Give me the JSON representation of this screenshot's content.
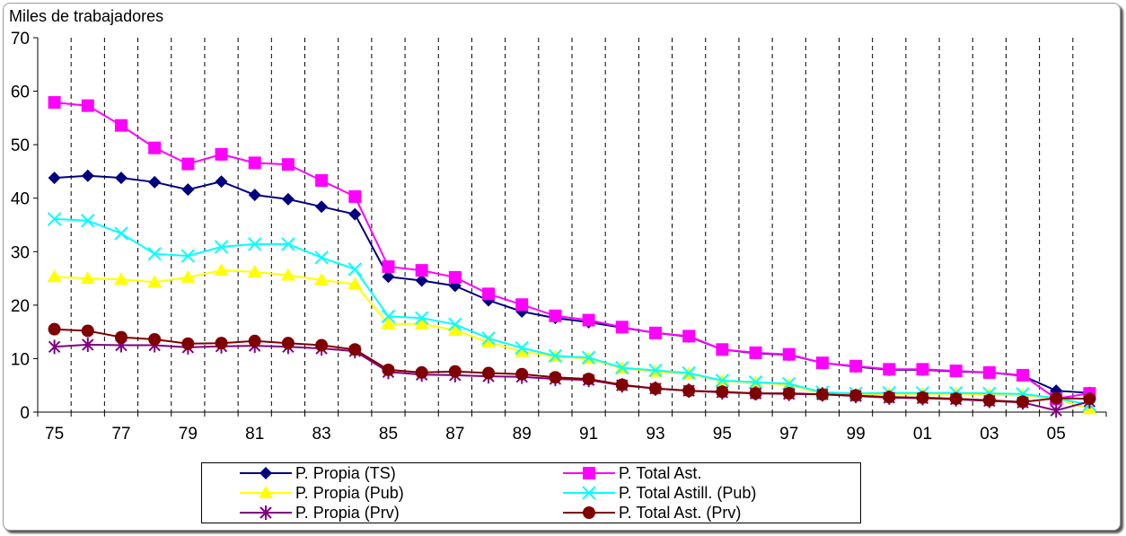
{
  "chart_data": {
    "type": "line",
    "ylabel": "Miles de trabajadores",
    "ylim": [
      0,
      70
    ],
    "yticks": [
      0,
      10,
      20,
      30,
      40,
      50,
      60,
      70
    ],
    "x": [
      75,
      76,
      77,
      78,
      79,
      80,
      81,
      82,
      83,
      84,
      85,
      86,
      87,
      88,
      89,
      90,
      91,
      92,
      93,
      94,
      95,
      96,
      97,
      98,
      99,
      0,
      1,
      2,
      3,
      4,
      5,
      6
    ],
    "xtick_labels": [
      "75",
      "77",
      "79",
      "81",
      "83",
      "85",
      "87",
      "89",
      "91",
      "93",
      "95",
      "97",
      "99",
      "01",
      "03",
      "05"
    ],
    "grid": "vertical dashed lines",
    "legend_position": "bottom",
    "series": [
      {
        "name": "P. Propia (TS)",
        "color": "#000080",
        "marker": "diamond",
        "values": [
          43.8,
          44.2,
          43.8,
          43.0,
          41.6,
          43.1,
          40.6,
          39.8,
          38.4,
          37.0,
          25.3,
          24.6,
          23.6,
          20.9,
          18.8,
          17.6,
          16.8,
          15.8,
          14.8,
          14.1,
          11.7,
          11.0,
          10.7,
          9.2,
          8.5,
          7.9,
          7.9,
          7.6,
          7.4,
          6.8,
          4.0,
          3.6
        ]
      },
      {
        "name": "P. Total Ast.",
        "color": "#FF00FF",
        "marker": "square",
        "values": [
          57.9,
          57.3,
          53.6,
          49.4,
          46.4,
          48.2,
          46.6,
          46.3,
          43.3,
          40.3,
          27.2,
          26.5,
          25.2,
          22.1,
          20.1,
          18.0,
          17.2,
          15.9,
          14.8,
          14.2,
          11.7,
          11.1,
          10.8,
          9.2,
          8.6,
          8.0,
          8.0,
          7.7,
          7.4,
          6.9,
          2.5,
          3.5
        ]
      },
      {
        "name": "P. Propia (Pub)",
        "color": "#FFFF00",
        "marker": "triangle",
        "values": [
          25.3,
          25.0,
          24.8,
          24.3,
          25.2,
          26.5,
          26.2,
          25.6,
          24.7,
          23.9,
          16.5,
          16.5,
          15.3,
          13.1,
          11.3,
          10.4,
          10.0,
          8.2,
          7.6,
          7.2,
          5.8,
          5.5,
          5.1,
          3.5,
          3.3,
          3.4,
          3.4,
          3.4,
          3.3,
          3.2,
          2.5,
          0.6
        ]
      },
      {
        "name": "P. Total Astill. (Pub)",
        "color": "#00FFFF",
        "marker": "x",
        "values": [
          36.1,
          35.8,
          33.4,
          29.6,
          29.2,
          30.9,
          31.4,
          31.4,
          28.9,
          26.7,
          17.9,
          17.6,
          16.4,
          13.8,
          12.0,
          10.5,
          10.2,
          8.3,
          7.8,
          7.3,
          5.9,
          5.6,
          5.3,
          3.7,
          3.5,
          3.6,
          3.6,
          3.6,
          3.5,
          3.4,
          2.6,
          1.4
        ]
      },
      {
        "name": "P. Propia (Prv)",
        "color": "#800080",
        "marker": "star",
        "values": [
          12.2,
          12.6,
          12.5,
          12.5,
          12.1,
          12.3,
          12.4,
          12.2,
          11.9,
          11.4,
          7.5,
          7.0,
          6.9,
          6.7,
          6.6,
          6.2,
          6.0,
          5.0,
          4.4,
          4.0,
          3.7,
          3.5,
          3.4,
          3.3,
          3.0,
          2.7,
          2.6,
          2.4,
          2.1,
          1.8,
          0.3,
          2.0
        ]
      },
      {
        "name": "P. Total Ast. (Prv)",
        "color": "#800000",
        "marker": "circle",
        "values": [
          15.5,
          15.2,
          14.0,
          13.6,
          12.8,
          12.9,
          13.3,
          12.9,
          12.5,
          11.7,
          7.9,
          7.4,
          7.6,
          7.3,
          7.1,
          6.5,
          6.2,
          5.1,
          4.4,
          4.0,
          3.8,
          3.5,
          3.5,
          3.3,
          3.1,
          2.8,
          2.7,
          2.5,
          2.2,
          1.9,
          2.6,
          2.5
        ]
      }
    ]
  }
}
